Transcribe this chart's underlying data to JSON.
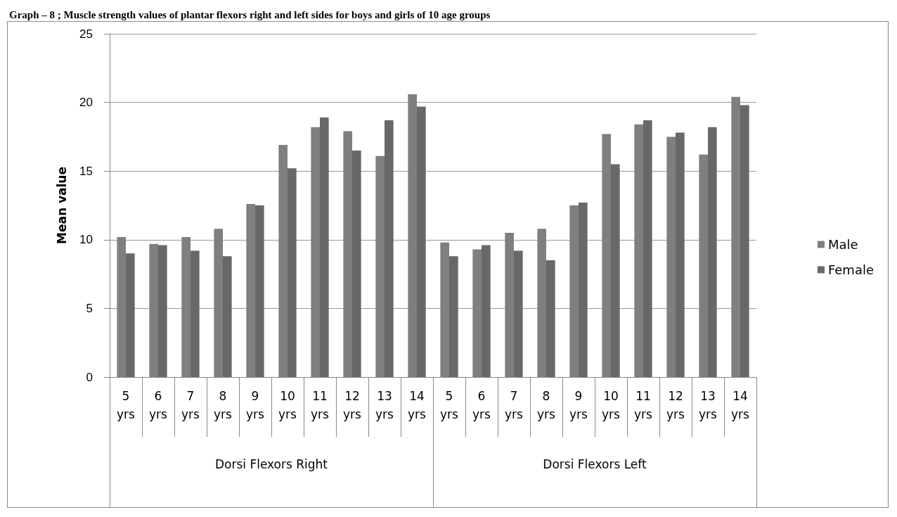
{
  "chart_data": {
    "type": "bar",
    "title": "Graph – 8 ; Muscle strength values of plantar flexors right and left sides for boys and girls of 10 age groups",
    "ylabel": "Mean value",
    "categories": [
      "5 yrs",
      "6 yrs",
      "7 yrs",
      "8 yrs",
      "9 yrs",
      "10 yrs",
      "11 yrs",
      "12 yrs",
      "13 yrs",
      "14 yrs",
      "5 yrs",
      "6 yrs",
      "7 yrs",
      "8 yrs",
      "9 yrs",
      "10 yrs",
      "11 yrs",
      "12 yrs",
      "13 yrs",
      "14 yrs"
    ],
    "annotations": [
      "Dorsi Flexors Right",
      "Dorsi Flexors Left"
    ],
    "series": [
      {
        "name": "Male",
        "color": "#7f7f7f",
        "values": [
          10.2,
          9.7,
          10.2,
          10.8,
          12.6,
          16.9,
          18.2,
          17.9,
          16.1,
          20.6,
          9.8,
          9.3,
          10.5,
          10.8,
          12.5,
          17.7,
          18.4,
          17.5,
          16.2,
          20.4
        ]
      },
      {
        "name": "Female",
        "color": "#686868",
        "values": [
          9.0,
          9.6,
          9.2,
          8.8,
          12.5,
          15.2,
          18.9,
          16.5,
          18.7,
          19.7,
          8.8,
          9.6,
          9.2,
          8.5,
          12.7,
          15.5,
          18.7,
          17.8,
          18.2,
          19.8
        ]
      }
    ],
    "ylim": [
      0,
      25
    ],
    "yticks": [
      0,
      5,
      10,
      15,
      20,
      25
    ],
    "grid": "y",
    "legend": "right"
  }
}
